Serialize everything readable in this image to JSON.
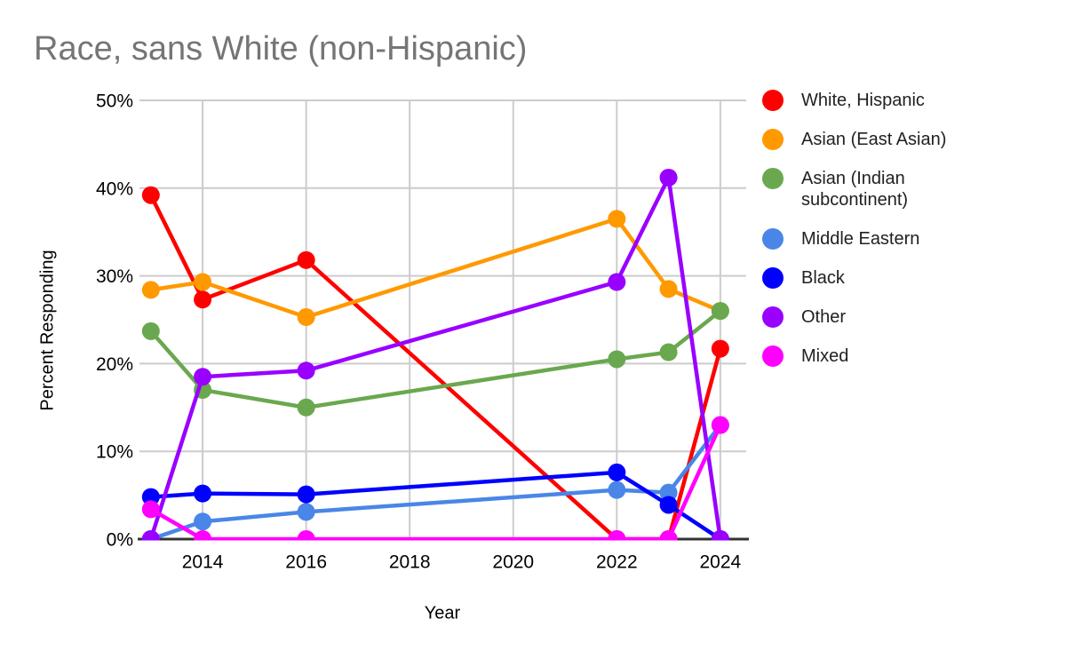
{
  "chart_data": {
    "type": "line",
    "title": "Race, sans White (non-Hispanic)",
    "xlabel": "Year",
    "ylabel": "Percent Responding",
    "x": [
      2013,
      2014,
      2016,
      2022,
      2023,
      2024
    ],
    "series": [
      {
        "name": "White, Hispanic",
        "color": "#FF0000",
        "values": [
          39.2,
          27.3,
          31.8,
          0,
          0,
          21.7
        ]
      },
      {
        "name": "Asian (East Asian)",
        "color": "#FF9900",
        "values": [
          28.4,
          29.3,
          25.3,
          36.5,
          28.5,
          26.0
        ]
      },
      {
        "name": "Asian (Indian subcontinent)",
        "color": "#6AA84F",
        "values": [
          23.7,
          17.0,
          15.0,
          20.5,
          21.3,
          26.0
        ]
      },
      {
        "name": "Middle Eastern",
        "color": "#4A86E8",
        "values": [
          0,
          2.0,
          3.1,
          5.6,
          5.3,
          13.0
        ]
      },
      {
        "name": "Black",
        "color": "#0000FF",
        "values": [
          4.8,
          5.2,
          5.1,
          7.6,
          3.9,
          0
        ]
      },
      {
        "name": "Other",
        "color": "#9900FF",
        "values": [
          0,
          18.5,
          19.2,
          29.3,
          41.2,
          0
        ]
      },
      {
        "name": "Mixed",
        "color": "#FF00FF",
        "values": [
          3.4,
          0,
          0,
          0,
          0,
          13.0
        ]
      }
    ],
    "x_ticks": [
      {
        "v": 2014,
        "label": "2014"
      },
      {
        "v": 2016,
        "label": "2016"
      },
      {
        "v": 2018,
        "label": "2018"
      },
      {
        "v": 2020,
        "label": "2020"
      },
      {
        "v": 2022,
        "label": "2022"
      },
      {
        "v": 2024,
        "label": "2024"
      }
    ],
    "y_ticks": [
      {
        "v": 0,
        "label": "0%"
      },
      {
        "v": 10,
        "label": "10%"
      },
      {
        "v": 20,
        "label": "20%"
      },
      {
        "v": 30,
        "label": "30%"
      },
      {
        "v": 40,
        "label": "40%"
      },
      {
        "v": 50,
        "label": "50%"
      }
    ],
    "xlim": [
      2012.78,
      2024.5
    ],
    "ylim": [
      0,
      50
    ],
    "grid": true,
    "legend_position": "right"
  },
  "styles": {
    "grid_color": "#cccccc",
    "axis_line_color": "#333333",
    "title_color": "#757575",
    "tick_text_color": "#000000",
    "legend_text_color": "#212121"
  }
}
